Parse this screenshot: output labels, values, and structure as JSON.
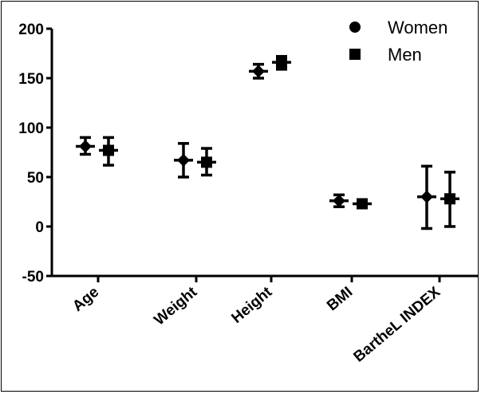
{
  "chart_data": {
    "type": "scatter",
    "title": "",
    "xlabel": "",
    "ylabel": "",
    "categories": [
      "Age",
      "Weight",
      "Height",
      "BMI",
      "BartheL INDEX"
    ],
    "ylim": [
      -50,
      200
    ],
    "yticks": [
      200,
      150,
      100,
      50,
      0,
      -50
    ],
    "yticks_labels": [
      "200",
      "150",
      "100",
      "50",
      "0",
      "-50"
    ],
    "legend_position": "top-right",
    "grid": false,
    "series": [
      {
        "name": "Women",
        "marker": "circle",
        "color": "#000000",
        "values": [
          81,
          67,
          157,
          26,
          30
        ],
        "error_low": [
          73,
          50,
          150,
          20,
          -2
        ],
        "error_high": [
          90,
          84,
          164,
          32,
          61
        ]
      },
      {
        "name": "Men",
        "marker": "square",
        "color": "#000000",
        "values": [
          77,
          65,
          166,
          23,
          28
        ],
        "error_low": [
          62,
          52,
          159,
          20,
          0
        ],
        "error_high": [
          90,
          79,
          172,
          26,
          55
        ]
      }
    ]
  }
}
